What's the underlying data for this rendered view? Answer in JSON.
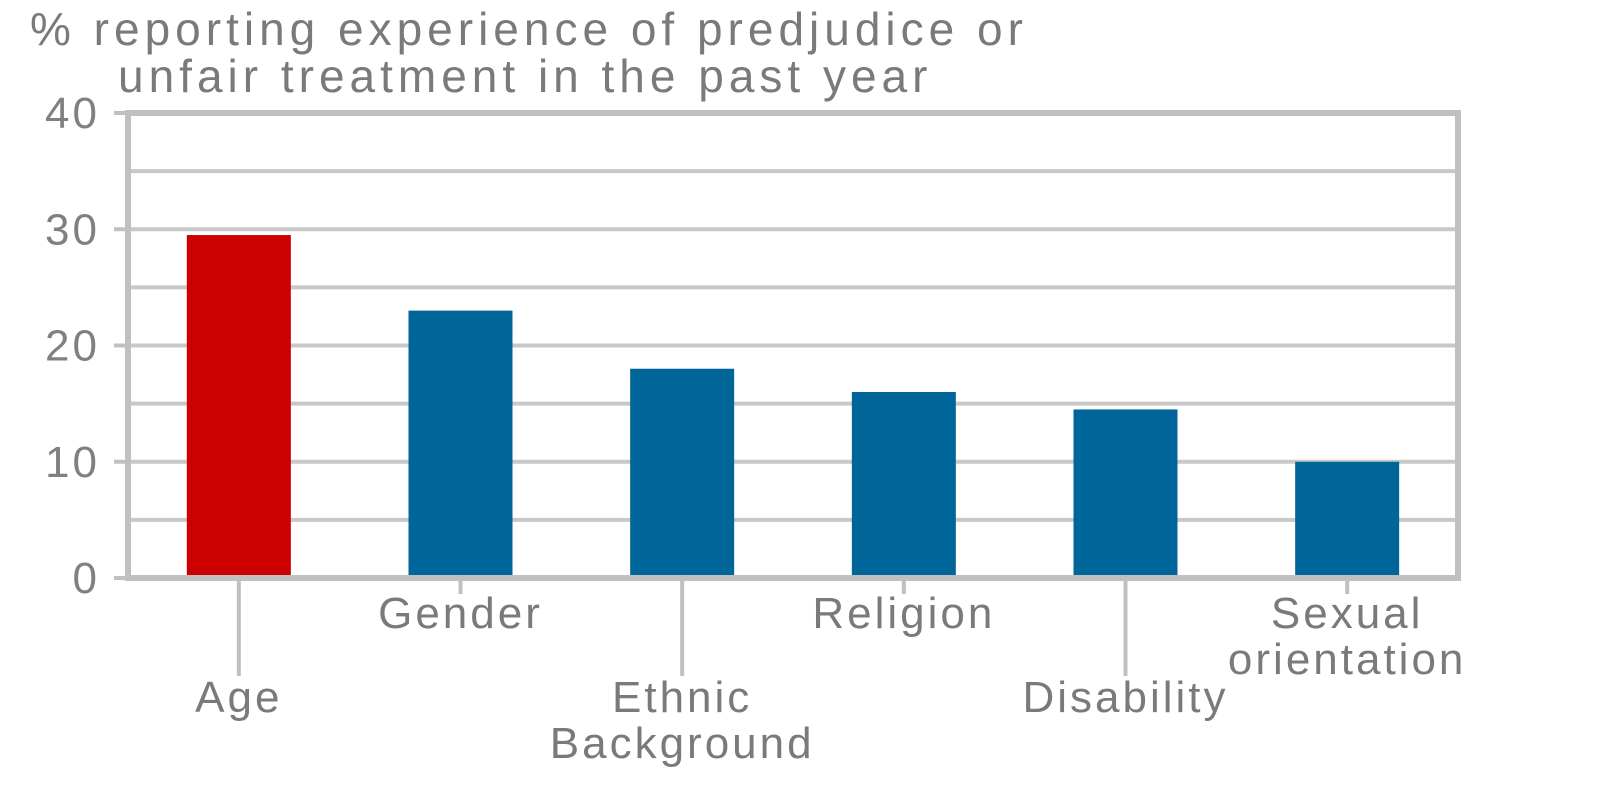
{
  "chart_data": {
    "type": "bar",
    "title": "% reporting experience of predjudice or unfair treatment in the past year",
    "title_lines": [
      "% reporting experience of predjudice or",
      "unfair treatment in the past year"
    ],
    "categories": [
      "Age",
      "Gender",
      "Ethnic Background",
      "Religion",
      "Disability",
      "Sexual orientation"
    ],
    "category_lines": [
      [
        "Age"
      ],
      [
        "Gender"
      ],
      [
        "Ethnic",
        "Background"
      ],
      [
        "Religion"
      ],
      [
        "Disability"
      ],
      [
        "Sexual",
        "orientation"
      ]
    ],
    "values": [
      29.5,
      23,
      18,
      16,
      14.5,
      10
    ],
    "ylim": [
      0,
      40
    ],
    "yticks": [
      "0",
      "10",
      "20",
      "30",
      "40"
    ],
    "grid": true,
    "colors": {
      "highlight": "#cc0000",
      "bar": "#006699",
      "grid": "#c8c8c8",
      "axis": "#c0c0c0"
    },
    "highlight_index": 0
  }
}
